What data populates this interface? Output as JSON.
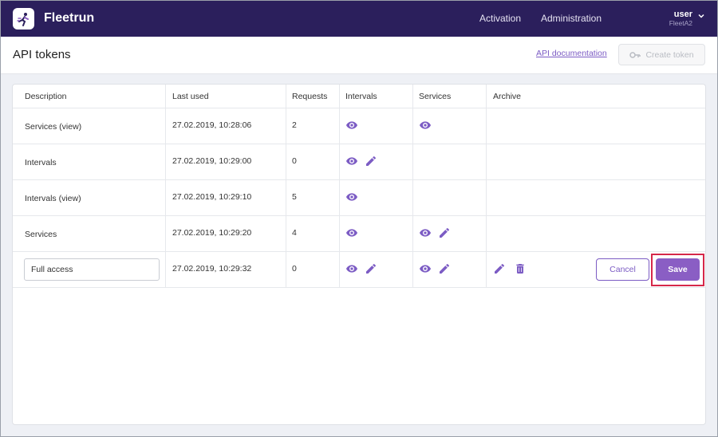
{
  "header": {
    "brand": "Fleetrun",
    "nav": {
      "activation": "Activation",
      "administration": "Administration"
    },
    "user": {
      "name": "user",
      "org": "FleetA2"
    }
  },
  "pagebar": {
    "title": "API tokens",
    "api_doc_link": "API documentation",
    "create_token_label": "Create token"
  },
  "table": {
    "columns": [
      "Description",
      "Last used",
      "Requests",
      "Intervals",
      "Services",
      "Archive"
    ],
    "rows": [
      {
        "description": "Services (view)",
        "last_used": "27.02.2019, 10:28:06",
        "requests": "2",
        "intervals": [
          "view"
        ],
        "services": [
          "view"
        ],
        "archive": []
      },
      {
        "description": "Intervals",
        "last_used": "27.02.2019, 10:29:00",
        "requests": "0",
        "intervals": [
          "view",
          "edit"
        ],
        "services": [],
        "archive": []
      },
      {
        "description": "Intervals (view)",
        "last_used": "27.02.2019, 10:29:10",
        "requests": "5",
        "intervals": [
          "view"
        ],
        "services": [],
        "archive": []
      },
      {
        "description": "Services",
        "last_used": "27.02.2019, 10:29:20",
        "requests": "4",
        "intervals": [
          "view"
        ],
        "services": [
          "view",
          "edit"
        ],
        "archive": []
      },
      {
        "description": "Full access",
        "last_used": "27.02.2019, 10:29:32",
        "requests": "0",
        "intervals": [
          "view",
          "edit"
        ],
        "services": [
          "view",
          "edit"
        ],
        "archive": [
          "edit",
          "delete"
        ],
        "editing": true
      }
    ],
    "edit_row": {
      "cancel_label": "Cancel",
      "save_label": "Save"
    }
  },
  "colors": {
    "header_bg": "#2b1f5c",
    "accent": "#8a5ec4",
    "icon": "#7c5cc4",
    "highlight": "#d6284a"
  },
  "icons": {
    "view": "eye-icon",
    "edit": "pencil-icon",
    "delete": "trash-icon",
    "key": "key-icon",
    "chevron": "chevron-down-icon"
  }
}
